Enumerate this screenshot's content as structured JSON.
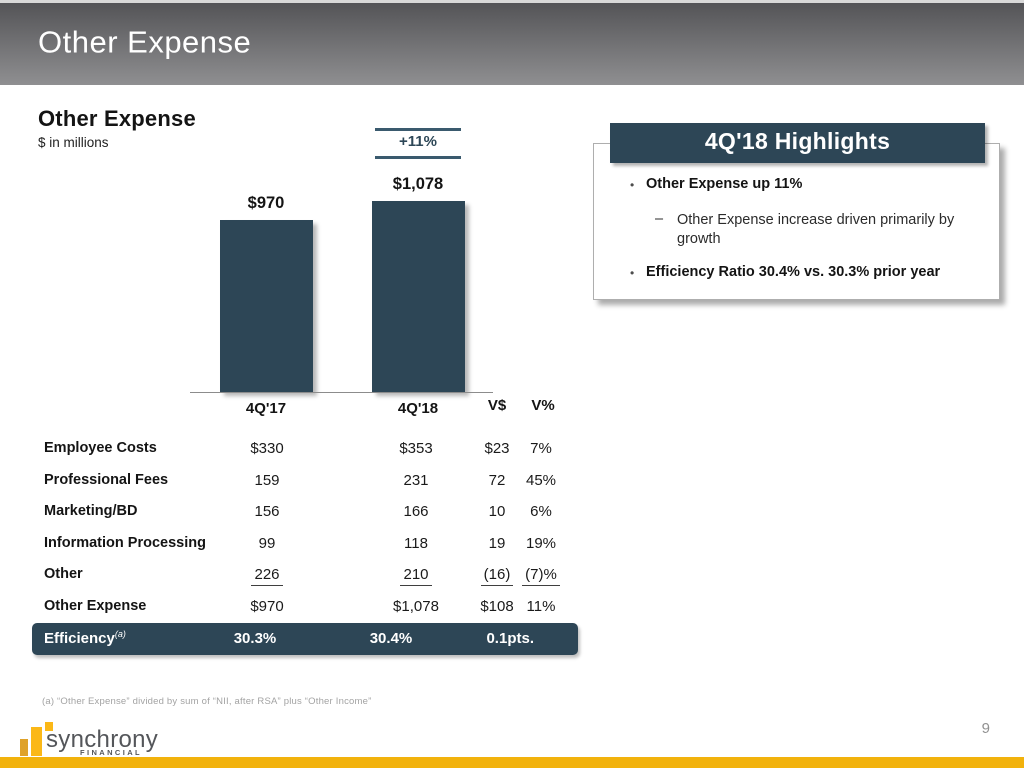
{
  "header": {
    "title": "Other Expense"
  },
  "chart_data": {
    "type": "bar",
    "title": "Other Expense",
    "subtitle": "$ in millions",
    "categories": [
      "4Q'17",
      "4Q'18"
    ],
    "values": [
      970,
      1078
    ],
    "bar_labels": [
      "$970",
      "$1,078"
    ],
    "growth_annotation": "+11%",
    "bar_color": "#2d4656",
    "ylim": [
      0,
      1100
    ],
    "grid": "off",
    "legend": "none"
  },
  "table": {
    "variance_headers": {
      "vdollar": "V$",
      "vpercent": "V%"
    },
    "rows": [
      {
        "label": "Employee Costs",
        "q17": "$330",
        "q18": "$353",
        "vd": "$23",
        "vp": "7%"
      },
      {
        "label": "Professional Fees",
        "q17": "159",
        "q18": "231",
        "vd": "72",
        "vp": "45%"
      },
      {
        "label": "Marketing/BD",
        "q17": "156",
        "q18": "166",
        "vd": "10",
        "vp": "6%"
      },
      {
        "label": "Information Processing",
        "q17": "99",
        "q18": "118",
        "vd": "19",
        "vp": "19%"
      },
      {
        "label": "Other",
        "q17": "226",
        "q18": "210",
        "vd": "(16)",
        "vp": "(7)%"
      },
      {
        "label": "Other Expense",
        "q17": "$970",
        "q18": "$1,078",
        "vd": "$108",
        "vp": "11%"
      }
    ],
    "efficiency": {
      "label": "Efficiency",
      "superscript": "(a)",
      "q17": "30.3%",
      "q18": "30.4%",
      "delta": "0.1pts."
    }
  },
  "highlights": {
    "title": "4Q'18 Highlights",
    "bullet_glyph": "•",
    "dash_glyph": "–",
    "bullet1": "Other Expense up 11%",
    "sub_bullet": "Other Expense increase driven primarily by growth",
    "bullet2": "Efficiency Ratio 30.4% vs. 30.3% prior year"
  },
  "footer": {
    "footnote": "(a) “Other Expense” divided by sum of “NII, after RSA” plus “Other Income”",
    "logo_text": "synchrony",
    "logo_subtext": "FINANCIAL",
    "page_number": "9"
  }
}
